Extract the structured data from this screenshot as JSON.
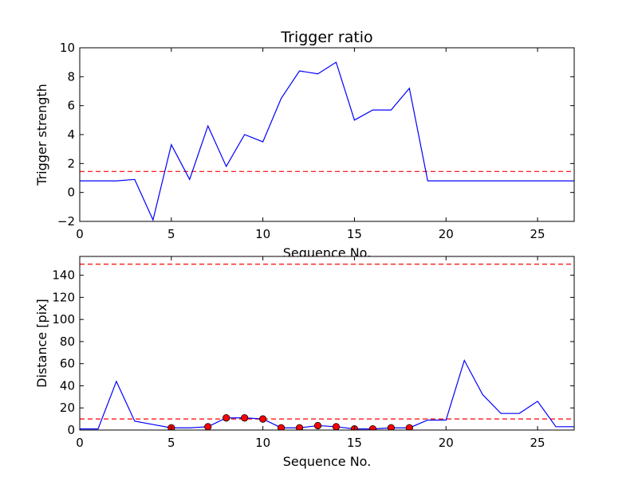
{
  "chart_data": [
    {
      "type": "line",
      "title": "Trigger ratio",
      "xlabel": "Sequence No.",
      "ylabel": "Trigger strength",
      "xlim": [
        0,
        27
      ],
      "ylim": [
        -2,
        10
      ],
      "x_ticks": [
        0,
        5,
        10,
        15,
        20,
        25
      ],
      "y_ticks": [
        -2,
        0,
        2,
        4,
        6,
        8,
        10
      ],
      "grid": false,
      "legend": "none",
      "series": [
        {
          "color": "#0000ff",
          "style": "solid",
          "x": [
            0,
            1,
            2,
            3,
            4,
            5,
            6,
            7,
            8,
            9,
            10,
            11,
            12,
            13,
            14,
            15,
            16,
            17,
            18,
            19,
            20,
            21,
            22,
            23,
            24,
            25,
            26,
            27
          ],
          "y": [
            0.8,
            0.8,
            0.8,
            0.9,
            -1.9,
            3.3,
            0.9,
            4.6,
            1.8,
            4.0,
            3.5,
            6.5,
            8.4,
            8.2,
            9.0,
            5.0,
            5.7,
            5.7,
            7.2,
            0.8,
            0.8,
            0.8,
            0.8,
            0.8,
            0.8,
            0.8,
            0.8,
            0.8
          ]
        }
      ],
      "reference_lines": [
        {
          "y": 1.45,
          "color": "#ff0000",
          "style": "dashed"
        }
      ]
    },
    {
      "type": "line",
      "title": "",
      "xlabel": "Sequence No.",
      "ylabel": "Distance [pix]",
      "xlim": [
        0,
        27
      ],
      "ylim": [
        0,
        157
      ],
      "x_ticks": [
        0,
        5,
        10,
        15,
        20,
        25
      ],
      "y_ticks": [
        0,
        20,
        40,
        60,
        80,
        100,
        120,
        140
      ],
      "grid": false,
      "legend": "none",
      "series": [
        {
          "color": "#0000ff",
          "style": "solid",
          "x": [
            0,
            1,
            2,
            3,
            4,
            5,
            6,
            7,
            8,
            9,
            10,
            11,
            12,
            13,
            14,
            15,
            16,
            17,
            18,
            19,
            20,
            21,
            22,
            23,
            24,
            25,
            26,
            27
          ],
          "y": [
            1,
            1,
            44,
            8,
            5,
            2,
            2,
            3,
            11,
            11,
            10,
            2,
            2,
            4,
            3,
            1,
            1,
            2,
            2,
            9,
            9,
            63,
            32,
            15,
            15,
            26,
            3,
            3
          ]
        }
      ],
      "markers": {
        "color": "#ff0000",
        "x": [
          5,
          7,
          8,
          9,
          10,
          11,
          12,
          13,
          14,
          15,
          16,
          17,
          18
        ],
        "y": [
          2,
          3,
          11,
          11,
          10,
          2,
          2,
          4,
          3,
          1,
          1,
          2,
          2
        ]
      },
      "reference_lines": [
        {
          "y": 150,
          "color": "#ff0000",
          "style": "dashed"
        },
        {
          "y": 10,
          "color": "#ff0000",
          "style": "dashed"
        }
      ]
    }
  ]
}
